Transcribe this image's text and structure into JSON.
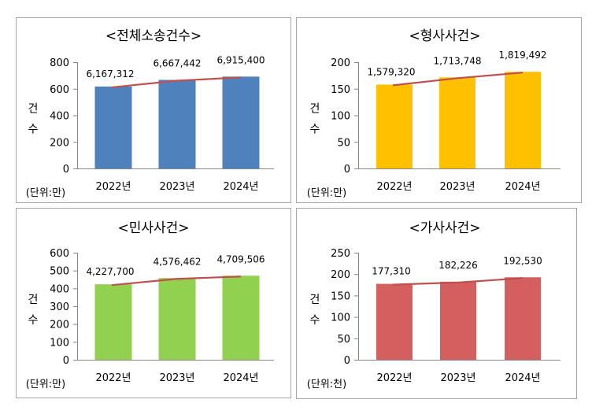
{
  "colors": {
    "trend_line": "#C0504D",
    "axis": "#868686",
    "panel_border": "#A6A6A6"
  },
  "chart_data": [
    {
      "type": "bar",
      "title": "<전체소송건수>",
      "ylabel": "건수",
      "unit_label": "(단위:만)",
      "categories": [
        "2022년",
        "2023년",
        "2024년"
      ],
      "values": [
        616.7312,
        666.7442,
        691.54
      ],
      "data_labels": [
        "6,167,312",
        "6,667,442",
        "6,915,400"
      ],
      "ylim": [
        0,
        800
      ],
      "yticks": [
        0,
        200,
        400,
        600,
        800
      ],
      "bar_color": "#4F81BD",
      "trend_line": true,
      "grid": false
    },
    {
      "type": "bar",
      "title": "<형사사건>",
      "ylabel": "건수",
      "unit_label": "(단위:만)",
      "categories": [
        "2022년",
        "2023년",
        "2024년"
      ],
      "values": [
        157.932,
        171.3748,
        181.9492
      ],
      "data_labels": [
        "1,579,320",
        "1,713,748",
        "1,819,492"
      ],
      "ylim": [
        0,
        200
      ],
      "yticks": [
        0,
        50,
        100,
        150,
        200
      ],
      "bar_color": "#FFC000",
      "trend_line": true,
      "grid": false
    },
    {
      "type": "bar",
      "title": "<민사사건>",
      "ylabel": "건수",
      "unit_label": "(단위:만)",
      "categories": [
        "2022년",
        "2023년",
        "2024년"
      ],
      "values": [
        422.77,
        457.6462,
        470.9506
      ],
      "data_labels": [
        "4,227,700",
        "4,576,462",
        "4,709,506"
      ],
      "ylim": [
        0,
        600
      ],
      "yticks": [
        0,
        100,
        200,
        300,
        400,
        500,
        600
      ],
      "bar_color": "#92D050",
      "trend_line": true,
      "grid": false
    },
    {
      "type": "bar",
      "title": "<가사사건>",
      "ylabel": "건수",
      "unit_label": "(단위:천)",
      "categories": [
        "2022년",
        "2023년",
        "2024년"
      ],
      "values": [
        177.31,
        182.226,
        192.53
      ],
      "data_labels": [
        "177,310",
        "182,226",
        "192,530"
      ],
      "ylim": [
        0,
        250
      ],
      "yticks": [
        0,
        50,
        100,
        150,
        200,
        250
      ],
      "bar_color": "#D35F5F",
      "trend_line": true,
      "grid": false
    }
  ]
}
